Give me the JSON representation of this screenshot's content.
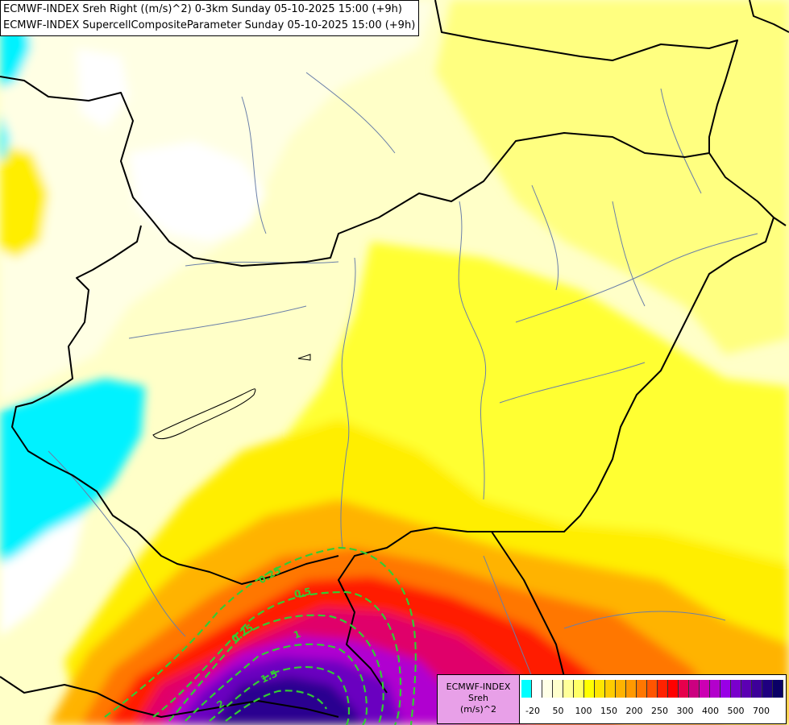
{
  "title": {
    "line1": "ECMWF-INDEX Sreh Right ((m/s)^2) 0-3km Sunday 05-10-2025 15:00 (+9h)",
    "line2": "ECMWF-INDEX SupercellCompositeParameter Sunday 05-10-2025 15:00 (+9h)"
  },
  "legend": {
    "line1": "ECMWF-INDEX",
    "line2": "Sreh",
    "line3": "(m/s)^2",
    "colors": [
      "#00ffff",
      "#ffffff",
      "#ffffe6",
      "#ffffcc",
      "#ffff99",
      "#ffff66",
      "#ffff00",
      "#ffe600",
      "#ffcc00",
      "#ffb300",
      "#ff9900",
      "#ff7700",
      "#ff5500",
      "#ff2200",
      "#ff0000",
      "#e6004c",
      "#cc0080",
      "#cc00b3",
      "#b300cc",
      "#9900e6",
      "#7a00cc",
      "#5c00b3",
      "#3d0099",
      "#1f0080",
      "#0a0066"
    ],
    "ticks": [
      "-20",
      "50",
      "100",
      "150",
      "200",
      "250",
      "300",
      "400",
      "500",
      "700"
    ]
  },
  "contours": {
    "color": "#33cc33",
    "labels": [
      "0.25",
      "0.5",
      "0.75",
      "1",
      "1.5",
      "2"
    ]
  }
}
